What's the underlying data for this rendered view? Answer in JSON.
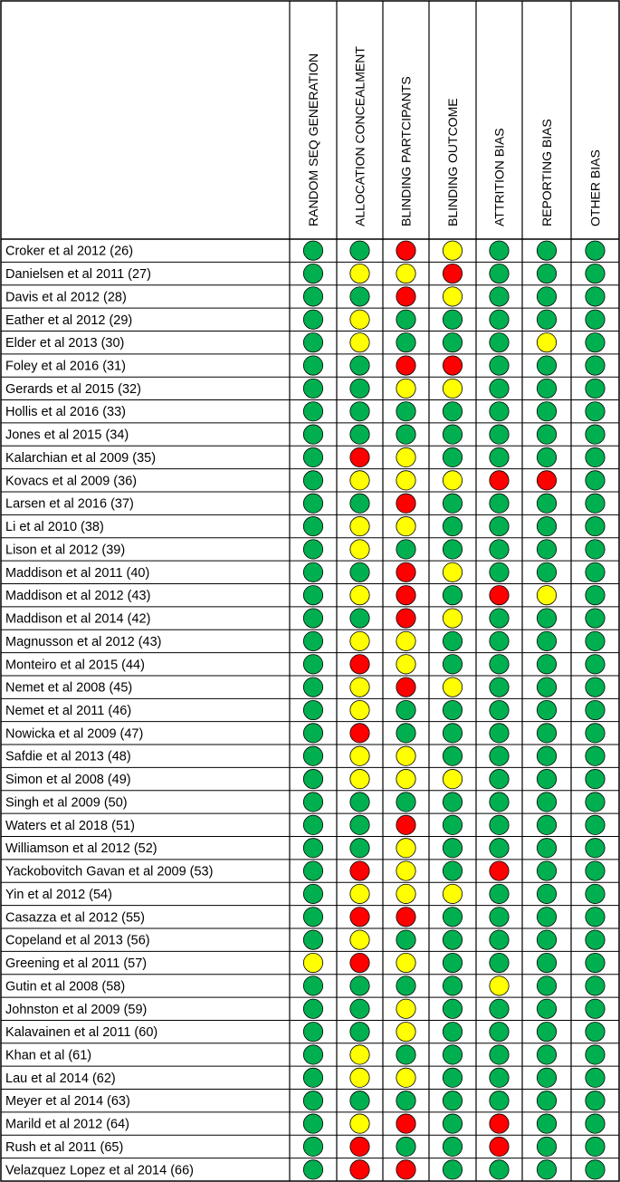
{
  "chart_data": {
    "type": "table",
    "columns": [
      "RANDOM SEQ GENERATION",
      "ALLOCATION CONCEALMENT",
      "BLINDING PARTCIPANTS",
      "BLINDING OUTCOME",
      "ATTRITION BIAS",
      "REPORTING BIAS",
      "OTHER BIAS"
    ],
    "colors": {
      "G": "#00B050",
      "Y": "#FFFF00",
      "R": "#FF0000"
    },
    "rows": [
      {
        "study": "Croker et al 2012 (26)",
        "ratings": [
          "G",
          "G",
          "R",
          "Y",
          "G",
          "G",
          "G"
        ]
      },
      {
        "study": "Danielsen et al 2011 (27)",
        "ratings": [
          "G",
          "Y",
          "Y",
          "R",
          "G",
          "G",
          "G"
        ]
      },
      {
        "study": "Davis et al 2012 (28)",
        "ratings": [
          "G",
          "G",
          "R",
          "Y",
          "G",
          "G",
          "G"
        ]
      },
      {
        "study": "Eather et al 2012 (29)",
        "ratings": [
          "G",
          "Y",
          "G",
          "G",
          "G",
          "G",
          "G"
        ]
      },
      {
        "study": "Elder et al 2013 (30)",
        "ratings": [
          "G",
          "Y",
          "G",
          "G",
          "G",
          "Y",
          "G"
        ]
      },
      {
        "study": "Foley et al 2016 (31)",
        "ratings": [
          "G",
          "G",
          "R",
          "R",
          "G",
          "G",
          "G"
        ]
      },
      {
        "study": "Gerards et al 2015 (32)",
        "ratings": [
          "G",
          "G",
          "Y",
          "Y",
          "G",
          "G",
          "G"
        ]
      },
      {
        "study": "Hollis et al 2016 (33)",
        "ratings": [
          "G",
          "G",
          "G",
          "G",
          "G",
          "G",
          "G"
        ]
      },
      {
        "study": "Jones et al 2015 (34)",
        "ratings": [
          "G",
          "G",
          "G",
          "G",
          "G",
          "G",
          "G"
        ]
      },
      {
        "study": "Kalarchian et al 2009 (35)",
        "ratings": [
          "G",
          "R",
          "Y",
          "G",
          "G",
          "G",
          "G"
        ]
      },
      {
        "study": "Kovacs et al 2009 (36)",
        "ratings": [
          "G",
          "Y",
          "Y",
          "Y",
          "R",
          "R",
          "G"
        ]
      },
      {
        "study": "Larsen et al 2016 (37)",
        "ratings": [
          "G",
          "G",
          "R",
          "G",
          "G",
          "G",
          "G"
        ]
      },
      {
        "study": "Li et al 2010 (38)",
        "ratings": [
          "G",
          "Y",
          "Y",
          "G",
          "G",
          "G",
          "G"
        ]
      },
      {
        "study": "Lison et al 2012 (39)",
        "ratings": [
          "G",
          "Y",
          "G",
          "G",
          "G",
          "G",
          "G"
        ]
      },
      {
        "study": "Maddison et al 2011 (40)",
        "ratings": [
          "G",
          "G",
          "R",
          "Y",
          "G",
          "G",
          "G"
        ]
      },
      {
        "study": "Maddison et al 2012 (43)",
        "ratings": [
          "G",
          "Y",
          "R",
          "G",
          "R",
          "Y",
          "G"
        ]
      },
      {
        "study": "Maddison et al 2014 (42)",
        "ratings": [
          "G",
          "G",
          "R",
          "Y",
          "G",
          "G",
          "G"
        ]
      },
      {
        "study": "Magnusson et al 2012 (43)",
        "ratings": [
          "G",
          "Y",
          "Y",
          "G",
          "G",
          "G",
          "G"
        ]
      },
      {
        "study": "Monteiro et al 2015 (44)",
        "ratings": [
          "G",
          "R",
          "Y",
          "G",
          "G",
          "G",
          "G"
        ]
      },
      {
        "study": "Nemet et al 2008 (45)",
        "ratings": [
          "G",
          "Y",
          "R",
          "Y",
          "G",
          "G",
          "G"
        ]
      },
      {
        "study": "Nemet et al 2011 (46)",
        "ratings": [
          "G",
          "Y",
          "G",
          "G",
          "G",
          "G",
          "G"
        ]
      },
      {
        "study": "Nowicka et al 2009 (47)",
        "ratings": [
          "G",
          "R",
          "G",
          "G",
          "G",
          "G",
          "G"
        ]
      },
      {
        "study": "Safdie et al 2013 (48)",
        "ratings": [
          "G",
          "Y",
          "Y",
          "G",
          "G",
          "G",
          "G"
        ]
      },
      {
        "study": "Simon et al 2008 (49)",
        "ratings": [
          "G",
          "Y",
          "Y",
          "Y",
          "G",
          "G",
          "G"
        ]
      },
      {
        "study": "Singh et al 2009 (50)",
        "ratings": [
          "G",
          "G",
          "G",
          "G",
          "G",
          "G",
          "G"
        ]
      },
      {
        "study": "Waters et al 2018 (51)",
        "ratings": [
          "G",
          "G",
          "R",
          "G",
          "G",
          "G",
          "G"
        ]
      },
      {
        "study": "Williamson et al 2012 (52)",
        "ratings": [
          "G",
          "G",
          "Y",
          "G",
          "G",
          "G",
          "G"
        ]
      },
      {
        "study": "Yackobovitch Gavan et al 2009 (53)",
        "ratings": [
          "G",
          "R",
          "Y",
          "G",
          "R",
          "G",
          "G"
        ]
      },
      {
        "study": "Yin et al 2012 (54)",
        "ratings": [
          "G",
          "Y",
          "Y",
          "Y",
          "G",
          "G",
          "G"
        ]
      },
      {
        "study": "Casazza et al 2012 (55)",
        "ratings": [
          "G",
          "R",
          "R",
          "G",
          "G",
          "G",
          "G"
        ]
      },
      {
        "study": "Copeland et al 2013 (56)",
        "ratings": [
          "G",
          "Y",
          "G",
          "G",
          "G",
          "G",
          "G"
        ]
      },
      {
        "study": "Greening et al 2011 (57)",
        "ratings": [
          "Y",
          "R",
          "Y",
          "G",
          "G",
          "G",
          "G"
        ]
      },
      {
        "study": "Gutin et al 2008 (58)",
        "ratings": [
          "G",
          "G",
          "G",
          "G",
          "Y",
          "G",
          "G"
        ]
      },
      {
        "study": "Johnston et al 2009 (59)",
        "ratings": [
          "G",
          "G",
          "Y",
          "G",
          "G",
          "G",
          "G"
        ]
      },
      {
        "study": "Kalavainen et al 2011 (60)",
        "ratings": [
          "G",
          "G",
          "Y",
          "G",
          "G",
          "G",
          "G"
        ]
      },
      {
        "study": "Khan et al (61)",
        "ratings": [
          "G",
          "Y",
          "G",
          "G",
          "G",
          "G",
          "G"
        ]
      },
      {
        "study": "Lau et al 2014 (62)",
        "ratings": [
          "G",
          "Y",
          "Y",
          "G",
          "G",
          "G",
          "G"
        ]
      },
      {
        "study": "Meyer et al 2014 (63)",
        "ratings": [
          "G",
          "G",
          "G",
          "G",
          "G",
          "G",
          "G"
        ]
      },
      {
        "study": "Marild et al 2012 (64)",
        "ratings": [
          "G",
          "Y",
          "R",
          "G",
          "R",
          "G",
          "G"
        ]
      },
      {
        "study": "Rush et al 2011 (65)",
        "ratings": [
          "G",
          "R",
          "G",
          "G",
          "R",
          "G",
          "G"
        ]
      },
      {
        "study": "Velazquez Lopez et al 2014 (66)",
        "ratings": [
          "G",
          "R",
          "R",
          "G",
          "G",
          "G",
          "G"
        ]
      }
    ]
  }
}
